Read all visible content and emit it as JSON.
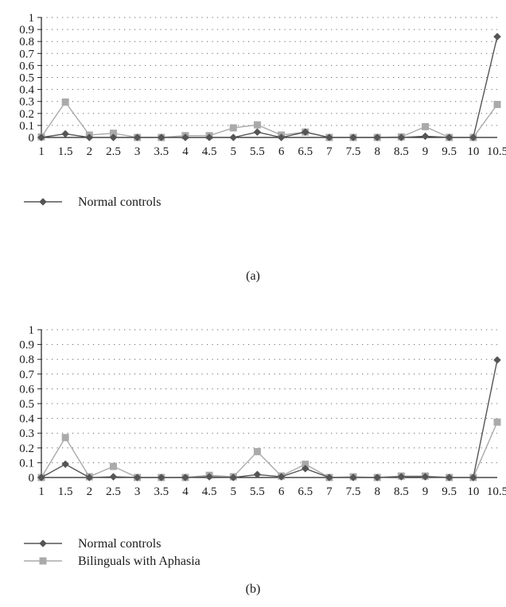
{
  "chart_data": [
    {
      "panel_label": "(a)",
      "type": "line",
      "categories": [
        "1",
        "1.5",
        "2",
        "2.5",
        "3",
        "3.5",
        "4",
        "4.5",
        "5",
        "5.5",
        "6",
        "6.5",
        "7",
        "7.5",
        "8",
        "8.5",
        "9",
        "9.5",
        "10",
        "10.5"
      ],
      "ylim": [
        0,
        1
      ],
      "yticks": [
        "0",
        "0.1",
        "0.2",
        "0.3",
        "0.4",
        "0.5",
        "0.6",
        "0.7",
        "0.8",
        "0.9",
        "1"
      ],
      "grid": true,
      "legend_position": "bottom-left",
      "series": [
        {
          "name": "Normal controls",
          "marker": "diamond",
          "color": "#555555",
          "values": [
            0.0,
            0.03,
            0.0,
            0.0,
            0.0,
            0.0,
            0.0,
            0.0,
            0.0,
            0.045,
            0.0,
            0.045,
            0.0,
            0.0,
            0.0,
            0.0,
            0.01,
            0.0,
            0.0,
            0.84
          ]
        },
        {
          "marker": "square",
          "color": "#aaaaaa",
          "values": [
            0.005,
            0.295,
            0.02,
            0.035,
            0.0,
            0.0,
            0.015,
            0.015,
            0.08,
            0.105,
            0.02,
            0.045,
            0.0,
            0.0,
            0.0,
            0.005,
            0.09,
            0.0,
            0.0,
            0.275
          ]
        }
      ]
    },
    {
      "panel_label": "(b)",
      "type": "line",
      "categories": [
        "1",
        "1.5",
        "2",
        "2.5",
        "3",
        "3.5",
        "4",
        "4.5",
        "5",
        "5.5",
        "6",
        "6.5",
        "7",
        "7.5",
        "8",
        "8.5",
        "9",
        "9.5",
        "10",
        "10.5"
      ],
      "ylim": [
        0,
        1
      ],
      "yticks": [
        "0",
        "0.1",
        "0.2",
        "0.3",
        "0.4",
        "0.5",
        "0.6",
        "0.7",
        "0.8",
        "0.9",
        "1"
      ],
      "grid": true,
      "legend_position": "bottom-left",
      "series": [
        {
          "name": "Normal controls",
          "marker": "diamond",
          "color": "#555555",
          "values": [
            0.0,
            0.09,
            0.0,
            0.005,
            0.0,
            0.0,
            0.0,
            0.005,
            0.0,
            0.02,
            0.005,
            0.06,
            0.0,
            0.0,
            0.0,
            0.005,
            0.005,
            0.0,
            0.0,
            0.795
          ]
        },
        {
          "name": "Bilinguals with Aphasia",
          "marker": "square",
          "color": "#aaaaaa",
          "values": [
            0.0,
            0.27,
            0.005,
            0.075,
            0.0,
            0.0,
            0.0,
            0.015,
            0.005,
            0.175,
            0.01,
            0.09,
            0.0,
            0.005,
            0.0,
            0.01,
            0.01,
            0.0,
            0.0,
            0.375
          ]
        }
      ]
    }
  ]
}
